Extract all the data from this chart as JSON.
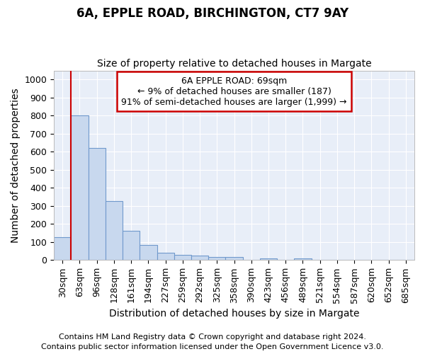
{
  "title": "6A, EPPLE ROAD, BIRCHINGTON, CT7 9AY",
  "subtitle": "Size of property relative to detached houses in Margate",
  "xlabel": "Distribution of detached houses by size in Margate",
  "ylabel": "Number of detached properties",
  "categories": [
    "30sqm",
    "63sqm",
    "96sqm",
    "128sqm",
    "161sqm",
    "194sqm",
    "227sqm",
    "259sqm",
    "292sqm",
    "325sqm",
    "358sqm",
    "390sqm",
    "423sqm",
    "456sqm",
    "489sqm",
    "521sqm",
    "554sqm",
    "587sqm",
    "620sqm",
    "652sqm",
    "685sqm"
  ],
  "values": [
    125,
    800,
    620,
    328,
    162,
    82,
    40,
    30,
    25,
    17,
    15,
    0,
    10,
    0,
    10,
    0,
    0,
    0,
    0,
    0,
    0
  ],
  "bar_color": "#c8d8ee",
  "bar_edge_color": "#7099cc",
  "ylim": [
    0,
    1050
  ],
  "yticks": [
    0,
    100,
    200,
    300,
    400,
    500,
    600,
    700,
    800,
    900,
    1000
  ],
  "redline_bar_index": 1,
  "annotation_text": "6A EPPLE ROAD: 69sqm\n← 9% of detached houses are smaller (187)\n91% of semi-detached houses are larger (1,999) →",
  "annotation_box_color": "#ffffff",
  "annotation_box_edge_color": "#cc0000",
  "footer_line1": "Contains HM Land Registry data © Crown copyright and database right 2024.",
  "footer_line2": "Contains public sector information licensed under the Open Government Licence v3.0.",
  "background_color": "#ffffff",
  "plot_background_color": "#e8eef8",
  "grid_color": "#ffffff",
  "title_fontsize": 12,
  "subtitle_fontsize": 10,
  "axis_label_fontsize": 10,
  "tick_fontsize": 9,
  "annotation_fontsize": 9,
  "footer_fontsize": 8
}
